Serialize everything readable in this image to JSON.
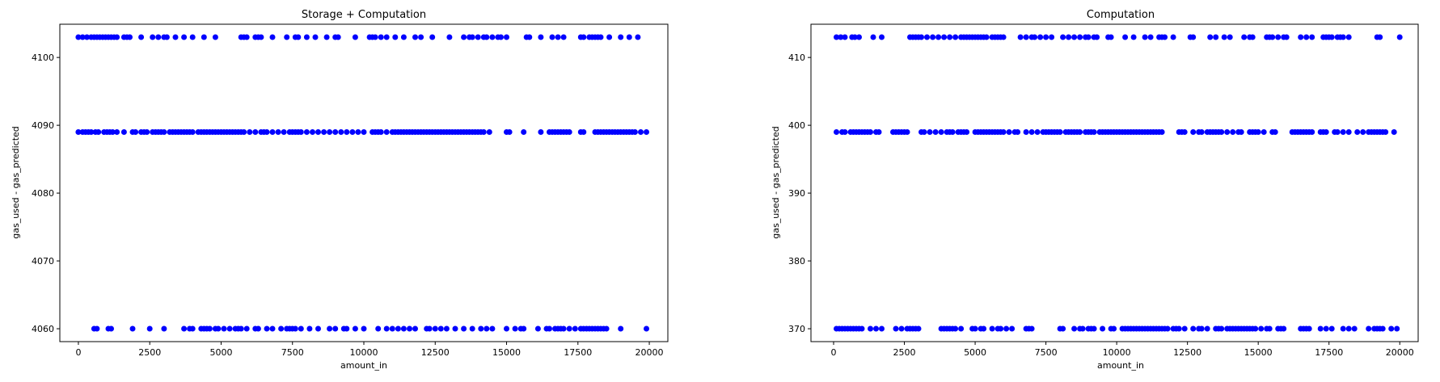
{
  "chart_data": [
    {
      "type": "scatter",
      "title": "Storage + Computation",
      "xlabel": "amount_in",
      "ylabel": "gas_used - gas_predicted",
      "xlim": [
        -650,
        20650
      ],
      "ylim": [
        4058.1,
        4104.9
      ],
      "xticks": [
        0,
        2500,
        5000,
        7500,
        10000,
        12500,
        15000,
        17500,
        20000
      ],
      "yticks": [
        4060,
        4070,
        4080,
        4090,
        4100
      ],
      "grid": false,
      "color": "#0000ff",
      "series": [
        {
          "values_by_level": [
            {
              "y": 4103,
              "x": [
                0,
                150,
                300,
                450,
                550,
                650,
                750,
                850,
                950,
                1050,
                1150,
                1250,
                1350,
                1600,
                1700,
                1800,
                2200,
                2600,
                2800,
                3000,
                3100,
                3400,
                3700,
                4000,
                4400,
                4800,
                5700,
                5800,
                5900,
                6200,
                6300,
                6400,
                6800,
                7300,
                7600,
                7700,
                8000,
                8300,
                8700,
                9000,
                9100,
                9700,
                10200,
                10300,
                10400,
                10600,
                10800,
                11100,
                11400,
                11800,
                12000,
                12400,
                13000,
                13500,
                13700,
                13800,
                14000,
                14200,
                14300,
                14500,
                14700,
                14800,
                15000,
                15700,
                15800,
                16200,
                16600,
                16800,
                17000,
                17600,
                17700,
                17900,
                18000,
                18100,
                18200,
                18300,
                18600,
                19000,
                19300,
                19600
              ]
            },
            {
              "y": 4089,
              "x": [
                0,
                150,
                250,
                350,
                450,
                600,
                700,
                900,
                1000,
                1100,
                1200,
                1350,
                1600,
                1900,
                2000,
                2200,
                2300,
                2400,
                2600,
                2700,
                2800,
                2900,
                3000,
                3200,
                3300,
                3400,
                3500,
                3600,
                3700,
                3800,
                3900,
                4000,
                4200,
                4300,
                4400,
                4500,
                4600,
                4700,
                4800,
                4900,
                5000,
                5100,
                5200,
                5300,
                5400,
                5500,
                5600,
                5700,
                5800,
                6000,
                6200,
                6400,
                6500,
                6600,
                6800,
                7000,
                7200,
                7400,
                7500,
                7600,
                7700,
                7800,
                8000,
                8200,
                8400,
                8600,
                8800,
                9000,
                9200,
                9400,
                9600,
                9800,
                10000,
                10300,
                10400,
                10500,
                10600,
                10800,
                11000,
                11100,
                11200,
                11300,
                11400,
                11500,
                11600,
                11700,
                11800,
                11900,
                12000,
                12100,
                12200,
                12300,
                12400,
                12500,
                12600,
                12700,
                12800,
                12900,
                13000,
                13100,
                13200,
                13300,
                13400,
                13500,
                13600,
                13700,
                13800,
                13900,
                14000,
                14100,
                14200,
                14400,
                15000,
                15100,
                15600,
                16200,
                16500,
                16600,
                16700,
                16800,
                16900,
                17000,
                17100,
                17200,
                17600,
                17700,
                18100,
                18200,
                18300,
                18400,
                18500,
                18600,
                18700,
                18800,
                18900,
                19000,
                19100,
                19200,
                19300,
                19400,
                19500,
                19700,
                19900
              ]
            },
            {
              "y": 4060,
              "x": [
                550,
                650,
                1050,
                1150,
                1900,
                2500,
                3000,
                3700,
                3900,
                4000,
                4300,
                4400,
                4500,
                4600,
                4800,
                4900,
                5100,
                5300,
                5500,
                5600,
                5700,
                5900,
                6200,
                6300,
                6600,
                6800,
                7100,
                7300,
                7400,
                7500,
                7600,
                7800,
                8100,
                8400,
                8800,
                9000,
                9300,
                9400,
                9700,
                10000,
                10500,
                10800,
                11000,
                11200,
                11400,
                11600,
                11800,
                12200,
                12300,
                12500,
                12700,
                12900,
                13200,
                13500,
                13800,
                14100,
                14300,
                14500,
                15000,
                15300,
                15500,
                15600,
                16100,
                16400,
                16500,
                16700,
                16800,
                16900,
                17000,
                17200,
                17400,
                17600,
                17700,
                17800,
                17900,
                18000,
                18100,
                18200,
                18300,
                18400,
                18500,
                19000,
                19900
              ]
            }
          ]
        }
      ]
    },
    {
      "type": "scatter",
      "title": "Computation",
      "xlabel": "amount_in",
      "ylabel": "gas_used - gas_predicted",
      "xlim": [
        -800,
        20650
      ],
      "ylim": [
        368.1,
        414.9
      ],
      "xticks": [
        0,
        2500,
        5000,
        7500,
        10000,
        12500,
        15000,
        17500,
        20000
      ],
      "yticks": [
        370,
        380,
        390,
        400,
        410
      ],
      "grid": false,
      "color": "#0000ff",
      "series": [
        {
          "values_by_level": [
            {
              "y": 413,
              "x": [
                100,
                250,
                400,
                650,
                750,
                900,
                1400,
                1700,
                2700,
                2800,
                2900,
                3000,
                3100,
                3300,
                3500,
                3700,
                3900,
                4100,
                4300,
                4500,
                4600,
                4700,
                4800,
                4900,
                5000,
                5100,
                5200,
                5300,
                5400,
                5600,
                5700,
                5800,
                5900,
                6000,
                6600,
                6800,
                7000,
                7100,
                7300,
                7500,
                7700,
                8100,
                8300,
                8500,
                8700,
                8900,
                9000,
                9200,
                9300,
                9700,
                9800,
                10300,
                10600,
                11000,
                11200,
                11500,
                11600,
                11700,
                12000,
                12600,
                12700,
                13300,
                13500,
                13800,
                14000,
                14500,
                14700,
                14800,
                15300,
                15400,
                15500,
                15700,
                15900,
                16000,
                16500,
                16700,
                16900,
                17300,
                17400,
                17500,
                17600,
                17800,
                17900,
                18000,
                18200,
                19200,
                19300,
                20000
              ]
            },
            {
              "y": 399,
              "x": [
                100,
                300,
                400,
                600,
                700,
                800,
                900,
                1000,
                1100,
                1200,
                1300,
                1500,
                1600,
                2100,
                2200,
                2300,
                2400,
                2500,
                2600,
                3100,
                3200,
                3400,
                3600,
                3800,
                4000,
                4100,
                4200,
                4400,
                4500,
                4600,
                4700,
                5000,
                5100,
                5200,
                5300,
                5400,
                5500,
                5600,
                5700,
                5800,
                5900,
                6000,
                6200,
                6400,
                6500,
                6800,
                7000,
                7200,
                7400,
                7500,
                7600,
                7700,
                7800,
                7900,
                8000,
                8200,
                8300,
                8400,
                8500,
                8600,
                8700,
                8900,
                9000,
                9100,
                9200,
                9400,
                9500,
                9600,
                9700,
                9800,
                9900,
                10000,
                10100,
                10200,
                10300,
                10400,
                10500,
                10600,
                10700,
                10800,
                10900,
                11000,
                11100,
                11200,
                11300,
                11400,
                11500,
                11600,
                12200,
                12300,
                12400,
                12700,
                12900,
                13000,
                13200,
                13300,
                13400,
                13500,
                13600,
                13700,
                13900,
                14100,
                14300,
                14400,
                14700,
                14800,
                14900,
                15000,
                15200,
                15500,
                15600,
                16200,
                16300,
                16400,
                16500,
                16600,
                16700,
                16800,
                16900,
                17200,
                17300,
                17400,
                17700,
                17800,
                18000,
                18200,
                18500,
                18700,
                18900,
                19000,
                19100,
                19200,
                19300,
                19400,
                19500,
                19800
              ]
            },
            {
              "y": 370,
              "x": [
                100,
                200,
                300,
                400,
                500,
                600,
                700,
                800,
                900,
                1000,
                1300,
                1500,
                1700,
                2200,
                2400,
                2600,
                2700,
                2800,
                2900,
                3000,
                3800,
                3900,
                4000,
                4100,
                4200,
                4300,
                4500,
                4900,
                5000,
                5200,
                5300,
                5600,
                5800,
                5900,
                6100,
                6300,
                6800,
                6900,
                7000,
                8000,
                8100,
                8500,
                8700,
                8800,
                9000,
                9100,
                9200,
                9500,
                9800,
                9900,
                10200,
                10300,
                10400,
                10500,
                10600,
                10700,
                10800,
                10900,
                11000,
                11100,
                11200,
                11300,
                11400,
                11500,
                11600,
                11700,
                11800,
                12000,
                12100,
                12200,
                12400,
                12700,
                12900,
                13000,
                13200,
                13500,
                13600,
                13700,
                13900,
                14000,
                14100,
                14200,
                14300,
                14400,
                14500,
                14600,
                14700,
                14800,
                14900,
                15100,
                15300,
                15400,
                15700,
                15800,
                15900,
                16500,
                16600,
                16700,
                16800,
                17200,
                17400,
                17600,
                18000,
                18200,
                18400,
                18900,
                19100,
                19200,
                19300,
                19400,
                19700,
                19900
              ]
            }
          ]
        }
      ]
    }
  ]
}
